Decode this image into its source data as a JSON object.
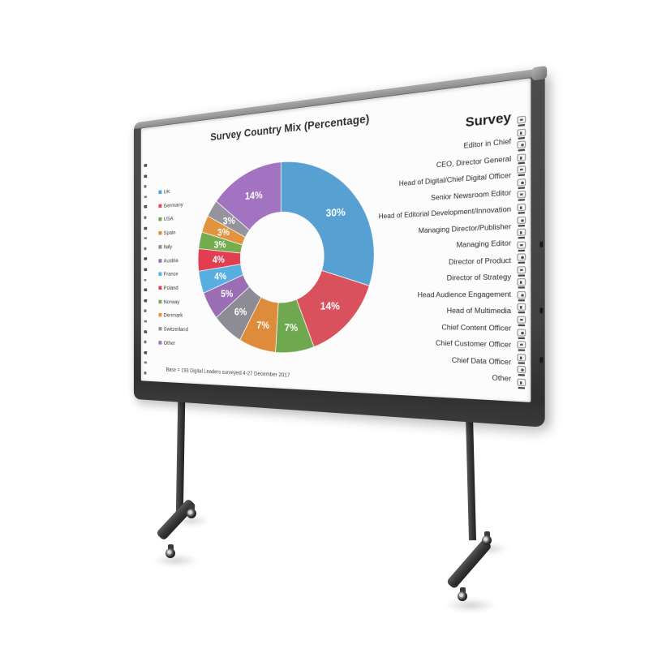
{
  "board": {
    "right_panel": {
      "title": "Survey",
      "items": [
        "Editor in Chief",
        "CEO, Director General",
        "Head of Digital/Chief Digital Officer",
        "Senior Newsroom Editor",
        "Head of Editorial Development/Innovation",
        "Managing Director/Publisher",
        "Managing Editor",
        "Director of Product",
        "Director of Strategy",
        "Head Audience Engagement",
        "Head of Multimedia",
        "Chief Content Officer",
        "Chief Customer Officer",
        "Chief Data Officer",
        "Other"
      ]
    },
    "hotkeys": {
      "left_count": 21,
      "right_count": 22
    },
    "frame_color": "#3f3f3f"
  },
  "chart_data": {
    "type": "pie",
    "subtype": "donut",
    "title": "Survey Country Mix (Percentage)",
    "categories": [
      "UK",
      "Germany",
      "USA",
      "Spain",
      "Italy",
      "Austria",
      "France",
      "Poland",
      "Norway",
      "Denmark",
      "Switzerland",
      "Other"
    ],
    "values": [
      30,
      14,
      7,
      7,
      6,
      5,
      4,
      4,
      3,
      3,
      3,
      14
    ],
    "labels": [
      "30%",
      "14%",
      "7%",
      "7%",
      "6%",
      "5%",
      "4%",
      "4%",
      "3%",
      "3%",
      "3%",
      "14%"
    ],
    "colors": [
      "#57a0d2",
      "#d9515c",
      "#70a84f",
      "#de8c3b",
      "#8d8c94",
      "#9a6db4",
      "#57aee0",
      "#e23e51",
      "#74ac4e",
      "#e0943e",
      "#95939b",
      "#a173c0"
    ],
    "label_color": "#ffffff",
    "legend_position": "left",
    "start_angle_deg": -90,
    "note": "Base = 193 Digital Leaders surveyed 4-27 December 2017"
  }
}
